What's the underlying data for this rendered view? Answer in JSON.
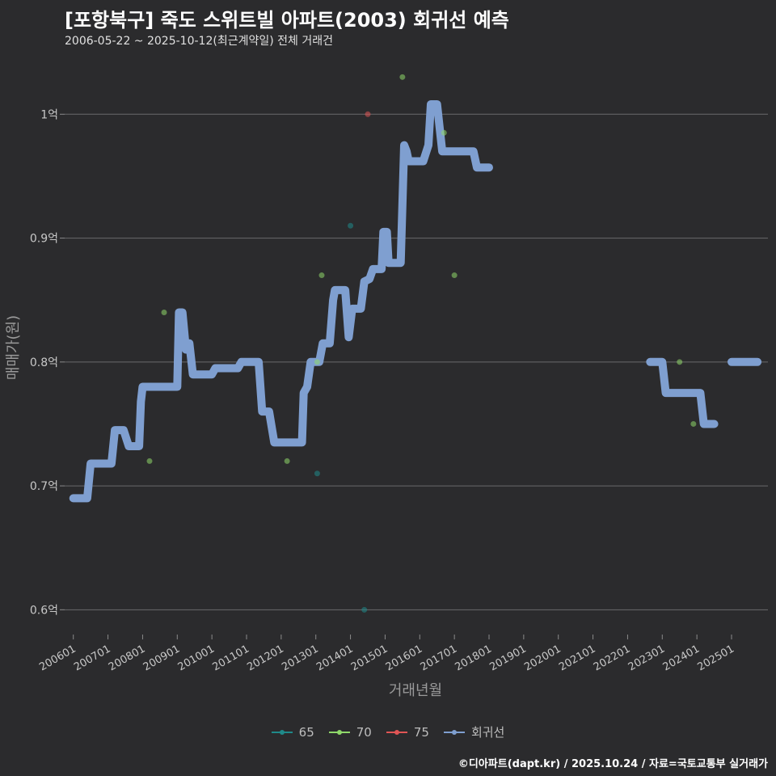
{
  "chart_data": {
    "type": "line",
    "title": "[포항북구] 죽도 스위트빌 아파트(2003) 회귀선 예측",
    "subtitle": "2006-05-22 ~ 2025-10-12(최근계약일) 전체 거래건",
    "xlabel": "거래년월",
    "ylabel": "매매가(원)",
    "ylim": [
      0.58,
      1.04
    ],
    "xlim": [
      2005.75,
      2026.05
    ],
    "y_ticks": [
      {
        "value": 0.6,
        "label": "0.6억"
      },
      {
        "value": 0.7,
        "label": "0.7억"
      },
      {
        "value": 0.8,
        "label": "0.8억"
      },
      {
        "value": 0.9,
        "label": "0.9억"
      },
      {
        "value": 1.0,
        "label": "1억"
      }
    ],
    "x_ticks": [
      {
        "value": 2006,
        "label": "200601"
      },
      {
        "value": 2007,
        "label": "200701"
      },
      {
        "value": 2008,
        "label": "200801"
      },
      {
        "value": 2009,
        "label": "200901"
      },
      {
        "value": 2010,
        "label": "201001"
      },
      {
        "value": 2011,
        "label": "201101"
      },
      {
        "value": 2012,
        "label": "201201"
      },
      {
        "value": 2013,
        "label": "201301"
      },
      {
        "value": 2014,
        "label": "201401"
      },
      {
        "value": 2015,
        "label": "201501"
      },
      {
        "value": 2016,
        "label": "201601"
      },
      {
        "value": 2017,
        "label": "201701"
      },
      {
        "value": 2018,
        "label": "201801"
      },
      {
        "value": 2019,
        "label": "201901"
      },
      {
        "value": 2020,
        "label": "202001"
      },
      {
        "value": 2021,
        "label": "202101"
      },
      {
        "value": 2022,
        "label": "202201"
      },
      {
        "value": 2023,
        "label": "202301"
      },
      {
        "value": 2024,
        "label": "202401"
      },
      {
        "value": 2025,
        "label": "202501"
      }
    ],
    "series": [
      {
        "name": "65",
        "color": "#1f8a8a",
        "points": [
          {
            "x": 2014.0,
            "y": 0.91
          },
          {
            "x": 2013.04,
            "y": 0.71
          },
          {
            "x": 2014.4,
            "y": 0.6
          }
        ]
      },
      {
        "name": "70",
        "color": "#8fd86a",
        "points": [
          {
            "x": 2008.62,
            "y": 0.84
          },
          {
            "x": 2008.2,
            "y": 0.72
          },
          {
            "x": 2012.17,
            "y": 0.72
          },
          {
            "x": 2013.04,
            "y": 0.8
          },
          {
            "x": 2013.17,
            "y": 0.87
          },
          {
            "x": 2015.5,
            "y": 1.03
          },
          {
            "x": 2016.7,
            "y": 0.985
          },
          {
            "x": 2017.0,
            "y": 0.87
          },
          {
            "x": 2023.5,
            "y": 0.8
          },
          {
            "x": 2023.9,
            "y": 0.75
          }
        ]
      },
      {
        "name": "75",
        "color": "#e05555",
        "points": [
          {
            "x": 2014.5,
            "y": 1.0
          }
        ]
      },
      {
        "name": "회귀선",
        "color": "#7f9fd0",
        "points": [
          {
            "x": 2006.0,
            "y": 0.69
          },
          {
            "x": 2006.4,
            "y": 0.69
          },
          {
            "x": 2006.5,
            "y": 0.718
          },
          {
            "x": 2007.1,
            "y": 0.718
          },
          {
            "x": 2007.2,
            "y": 0.745
          },
          {
            "x": 2007.45,
            "y": 0.745
          },
          {
            "x": 2007.6,
            "y": 0.732
          },
          {
            "x": 2007.9,
            "y": 0.732
          },
          {
            "x": 2007.95,
            "y": 0.768
          },
          {
            "x": 2008.0,
            "y": 0.78
          },
          {
            "x": 2009.0,
            "y": 0.78
          },
          {
            "x": 2009.05,
            "y": 0.84
          },
          {
            "x": 2009.15,
            "y": 0.84
          },
          {
            "x": 2009.25,
            "y": 0.81
          },
          {
            "x": 2009.35,
            "y": 0.815
          },
          {
            "x": 2009.45,
            "y": 0.79
          },
          {
            "x": 2010.0,
            "y": 0.79
          },
          {
            "x": 2010.1,
            "y": 0.795
          },
          {
            "x": 2010.75,
            "y": 0.795
          },
          {
            "x": 2010.85,
            "y": 0.8
          },
          {
            "x": 2011.35,
            "y": 0.8
          },
          {
            "x": 2011.45,
            "y": 0.76
          },
          {
            "x": 2011.65,
            "y": 0.76
          },
          {
            "x": 2011.8,
            "y": 0.735
          },
          {
            "x": 2012.6,
            "y": 0.735
          },
          {
            "x": 2012.65,
            "y": 0.775
          },
          {
            "x": 2012.75,
            "y": 0.78
          },
          {
            "x": 2012.85,
            "y": 0.8
          },
          {
            "x": 2013.1,
            "y": 0.8
          },
          {
            "x": 2013.2,
            "y": 0.815
          },
          {
            "x": 2013.4,
            "y": 0.815
          },
          {
            "x": 2013.5,
            "y": 0.85
          },
          {
            "x": 2013.55,
            "y": 0.858
          },
          {
            "x": 2013.85,
            "y": 0.858
          },
          {
            "x": 2013.95,
            "y": 0.82
          },
          {
            "x": 2014.05,
            "y": 0.843
          },
          {
            "x": 2014.3,
            "y": 0.843
          },
          {
            "x": 2014.4,
            "y": 0.865
          },
          {
            "x": 2014.55,
            "y": 0.867
          },
          {
            "x": 2014.65,
            "y": 0.875
          },
          {
            "x": 2014.9,
            "y": 0.875
          },
          {
            "x": 2014.95,
            "y": 0.905
          },
          {
            "x": 2015.05,
            "y": 0.905
          },
          {
            "x": 2015.1,
            "y": 0.88
          },
          {
            "x": 2015.45,
            "y": 0.88
          },
          {
            "x": 2015.55,
            "y": 0.975
          },
          {
            "x": 2015.62,
            "y": 0.97
          },
          {
            "x": 2015.68,
            "y": 0.962
          },
          {
            "x": 2016.1,
            "y": 0.962
          },
          {
            "x": 2016.25,
            "y": 0.975
          },
          {
            "x": 2016.32,
            "y": 1.008
          },
          {
            "x": 2016.5,
            "y": 1.008
          },
          {
            "x": 2016.65,
            "y": 0.97
          },
          {
            "x": 2017.55,
            "y": 0.97
          },
          {
            "x": 2017.65,
            "y": 0.957
          },
          {
            "x": 2018.0,
            "y": 0.957
          }
        ]
      },
      {
        "name": "회귀선",
        "color": "#7f9fd0",
        "points": [
          {
            "x": 2022.65,
            "y": 0.8
          },
          {
            "x": 2023.0,
            "y": 0.8
          },
          {
            "x": 2023.1,
            "y": 0.775
          },
          {
            "x": 2024.1,
            "y": 0.775
          },
          {
            "x": 2024.2,
            "y": 0.75
          },
          {
            "x": 2024.5,
            "y": 0.75
          }
        ]
      },
      {
        "name": "회귀선",
        "color": "#7f9fd0",
        "points": [
          {
            "x": 2025.0,
            "y": 0.8
          },
          {
            "x": 2025.75,
            "y": 0.8
          }
        ]
      }
    ],
    "legend": {
      "position": "bottom",
      "entries": [
        {
          "label": "65",
          "color": "#1f8a8a"
        },
        {
          "label": "70",
          "color": "#8fd86a"
        },
        {
          "label": "75",
          "color": "#e05555"
        },
        {
          "label": "회귀선",
          "color": "#7f9fd0"
        }
      ]
    },
    "grid": true
  },
  "caption": "©디아파트(dapt.kr) / 2025.10.24 / 자료=국토교통부 실거래가"
}
